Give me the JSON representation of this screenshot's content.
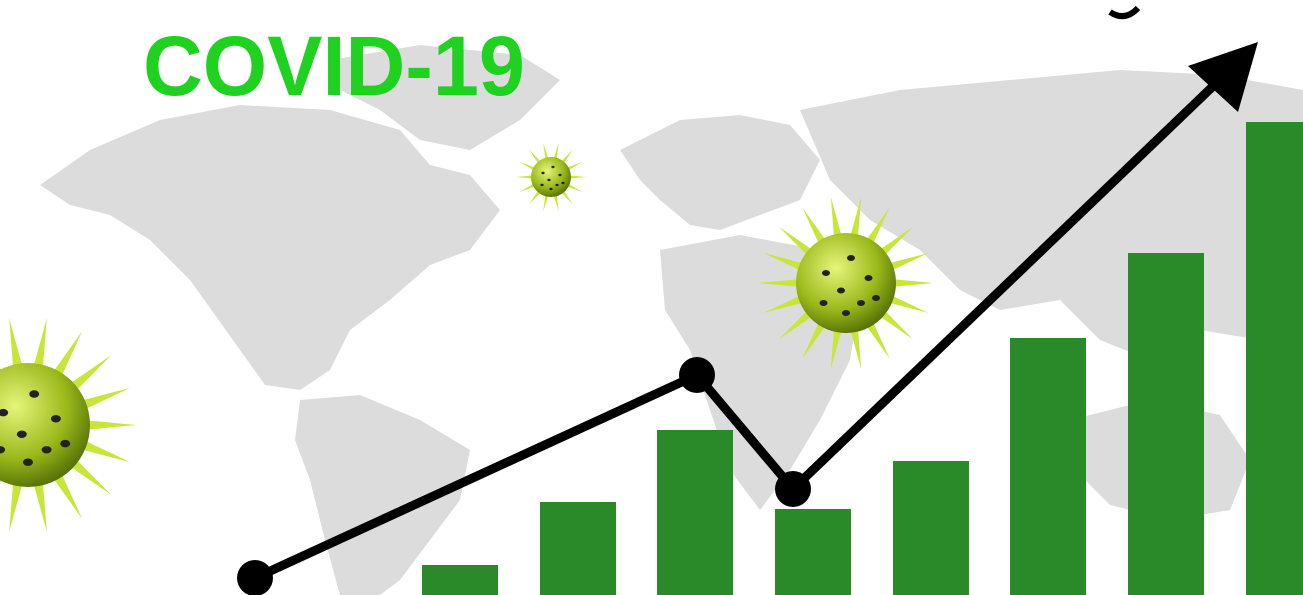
{
  "title": "COVID-19"
}
